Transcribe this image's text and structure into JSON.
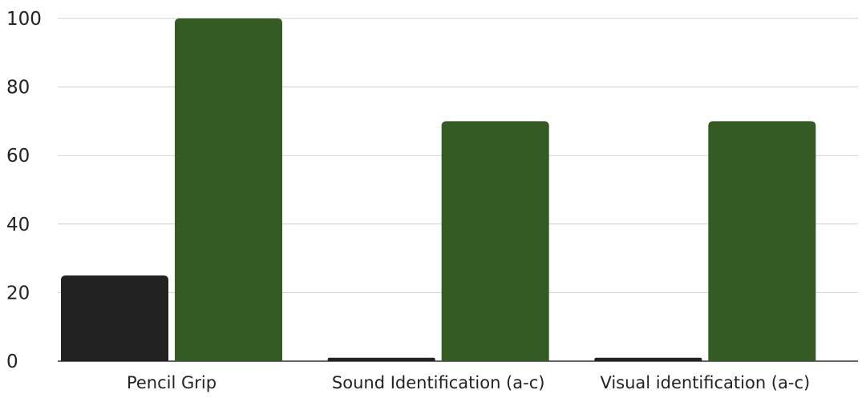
{
  "chart_data": {
    "type": "bar",
    "title": "",
    "xlabel": "",
    "ylabel": "",
    "categories": [
      "Pencil Grip",
      "Sound Identification (a-c)",
      "Visual identification (a-c)"
    ],
    "series": [
      {
        "values": [
          25,
          1,
          1
        ],
        "color": "#222222"
      },
      {
        "values": [
          100,
          70,
          70
        ],
        "color": "#345b24"
      }
    ],
    "ylim": [
      0,
      100
    ],
    "yticks": [
      0,
      20,
      40,
      60,
      80,
      100
    ],
    "grid": true,
    "legend": "none"
  }
}
